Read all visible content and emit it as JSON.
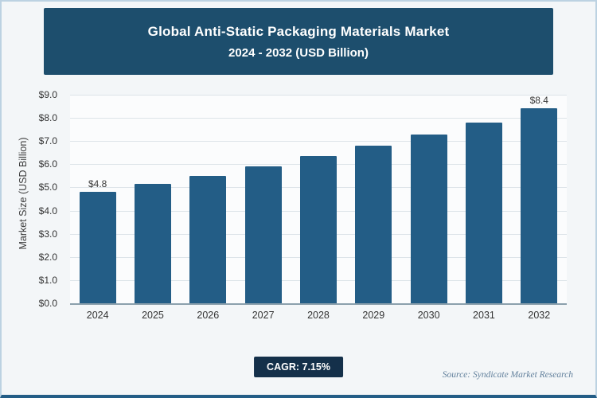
{
  "header": {
    "title_line1": "Global Anti-Static Packaging Materials Market",
    "title_line2": "2024 - 2032 (USD Billion)"
  },
  "chart_data": {
    "type": "bar",
    "title": "Global Anti-Static Packaging Materials Market 2024 - 2032 (USD Billion)",
    "categories": [
      "2024",
      "2025",
      "2026",
      "2027",
      "2028",
      "2029",
      "2030",
      "2031",
      "2032"
    ],
    "values": [
      4.8,
      5.15,
      5.5,
      5.9,
      6.35,
      6.8,
      7.3,
      7.8,
      8.4
    ],
    "data_labels": [
      "$4.8",
      "",
      "",
      "",
      "",
      "",
      "",
      "",
      "$8.4"
    ],
    "xlabel": "",
    "ylabel": "Market Size (USD Billion)",
    "ylim": [
      0,
      9
    ],
    "ytick_step": 1,
    "ytick_labels": [
      "$0.0",
      "$1.0",
      "$2.0",
      "$3.0",
      "$4.0",
      "$5.0",
      "$6.0",
      "$7.0",
      "$8.0",
      "$9.0"
    ],
    "grid": true,
    "legend_position": "none",
    "bar_color": "#235d86"
  },
  "footer": {
    "cagr_label": "CAGR: 7.15%",
    "source": "Source: Syndicate Market Research"
  },
  "colors": {
    "banner_bg": "#1d4e6d",
    "badge_bg": "#14304a",
    "page_bg": "#f3f6f8",
    "gridline": "#dde4e9"
  }
}
